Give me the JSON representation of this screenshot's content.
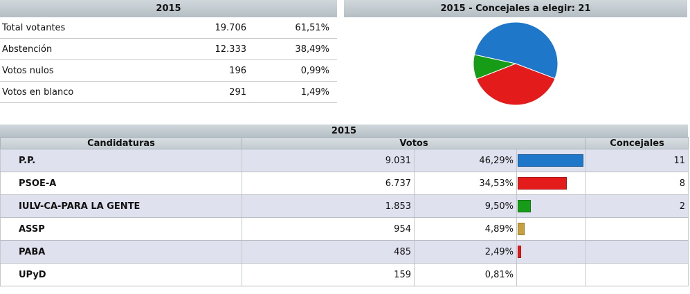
{
  "summary": {
    "year_title": "2015",
    "rows": [
      {
        "label": "Total votantes",
        "value": "19.706",
        "percent": "61,51%"
      },
      {
        "label": "Abstención",
        "value": "12.333",
        "percent": "38,49%"
      },
      {
        "label": "Votos nulos",
        "value": "196",
        "percent": "0,99%"
      },
      {
        "label": "Votos en blanco",
        "value": "291",
        "percent": "1,49%"
      }
    ]
  },
  "chart_panel": {
    "title": "2015 - Concejales a elegir: 21"
  },
  "chart_data": {
    "type": "pie",
    "title": "2015 - Concejales a elegir: 21",
    "categories": [
      "P.P.",
      "PSOE-A",
      "IULV-CA-PARA LA GENTE"
    ],
    "values": [
      11,
      8,
      2
    ],
    "colors": [
      "#1f77c9",
      "#e31b1b",
      "#179c17"
    ]
  },
  "results": {
    "year_title": "2015",
    "columns": {
      "candidaturas": "Candidaturas",
      "votos": "Votos",
      "concejales": "Concejales"
    },
    "rows": [
      {
        "party": "P.P.",
        "votes": "9.031",
        "percent": "46,29%",
        "percent_value": 46.29,
        "bar_color": "#1f77c9",
        "seats": "11"
      },
      {
        "party": "PSOE-A",
        "votes": "6.737",
        "percent": "34,53%",
        "percent_value": 34.53,
        "bar_color": "#e31b1b",
        "seats": "8"
      },
      {
        "party": "IULV-CA-PARA LA GENTE",
        "votes": "1.853",
        "percent": "9,50%",
        "percent_value": 9.5,
        "bar_color": "#179c17",
        "seats": "2"
      },
      {
        "party": "ASSP",
        "votes": "954",
        "percent": "4,89%",
        "percent_value": 4.89,
        "bar_color": "#c8a040",
        "seats": ""
      },
      {
        "party": "PABA",
        "votes": "485",
        "percent": "2,49%",
        "percent_value": 2.49,
        "bar_color": "#e31b1b",
        "seats": ""
      },
      {
        "party": "UPyD",
        "votes": "159",
        "percent": "0,81%",
        "percent_value": 0.81,
        "bar_color": "",
        "seats": ""
      }
    ]
  }
}
